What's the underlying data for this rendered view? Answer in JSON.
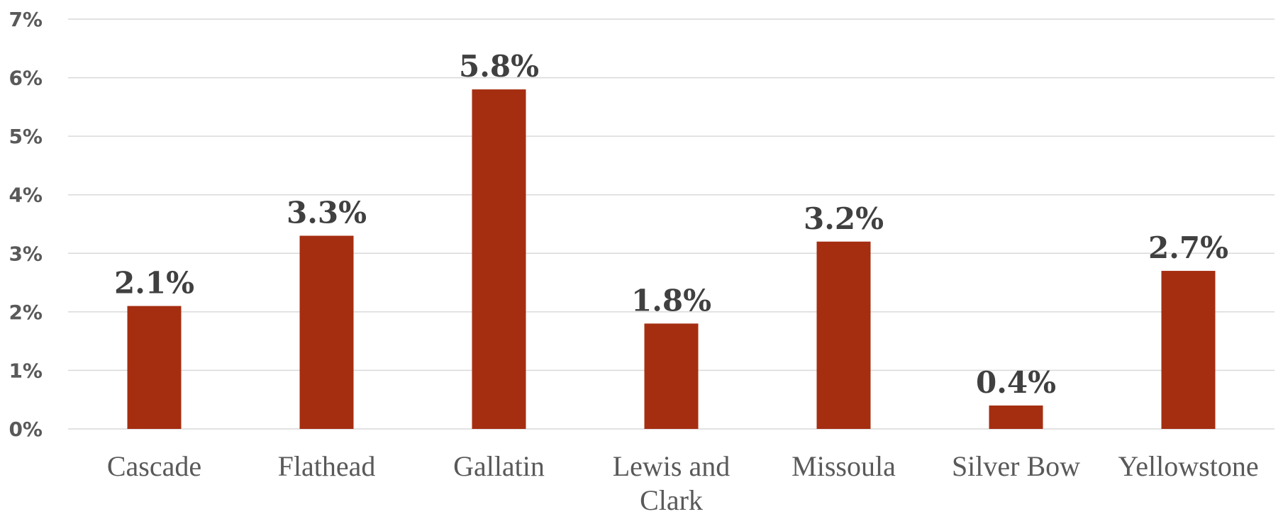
{
  "chart_data": {
    "type": "bar",
    "categories": [
      "Cascade",
      "Flathead",
      "Gallatin",
      "Lewis and Clark",
      "Missoula",
      "Silver Bow",
      "Yellowstone"
    ],
    "category_lines": [
      [
        "Cascade"
      ],
      [
        "Flathead"
      ],
      [
        "Gallatin"
      ],
      [
        "Lewis and",
        "Clark"
      ],
      [
        "Missoula"
      ],
      [
        "Silver Bow"
      ],
      [
        "Yellowstone"
      ]
    ],
    "values": [
      2.1,
      3.3,
      5.8,
      1.8,
      3.2,
      0.4,
      2.7
    ],
    "data_labels": [
      "2.1%",
      "3.3%",
      "5.8%",
      "1.8%",
      "3.2%",
      "0.4%",
      "2.7%"
    ],
    "y_ticks": [
      0,
      1,
      2,
      3,
      4,
      5,
      6,
      7
    ],
    "y_tick_labels": [
      "0%",
      "1%",
      "2%",
      "3%",
      "4%",
      "5%",
      "6%",
      "7%"
    ],
    "ylim": [
      0,
      7
    ],
    "title": "",
    "xlabel": "",
    "ylabel": "",
    "grid": true,
    "legend": "none",
    "colors": {
      "bar": "#a52e11",
      "grid": "#d9d9d9",
      "tick_text": "#595959",
      "label_text": "#404040"
    }
  }
}
